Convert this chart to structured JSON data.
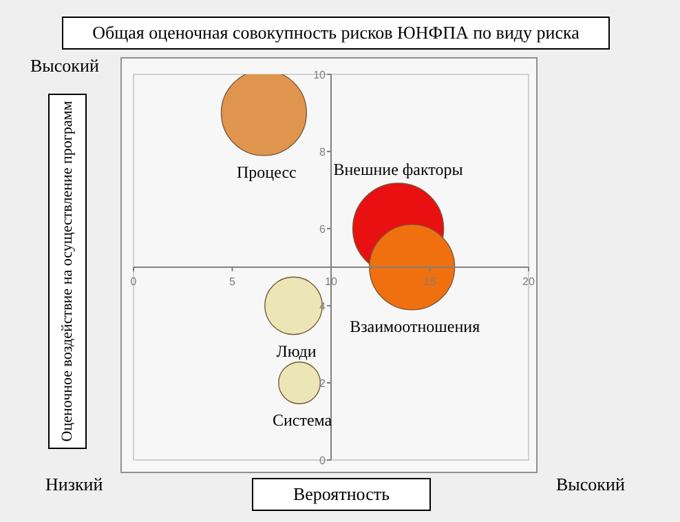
{
  "chart_data": {
    "type": "bubble",
    "title": "Общая оценочная совокупность рисков ЮНФПА по виду риска",
    "xlabel": "Вероятность",
    "ylabel": "Оценочное воздействие на осуществление программ",
    "annotations": [
      "Высокий",
      "Низкий",
      "Высокий"
    ],
    "xlim": [
      0,
      20
    ],
    "xticks": [
      0,
      5,
      10,
      15,
      20
    ],
    "ylim": [
      0,
      10
    ],
    "yticks": [
      0,
      2,
      4,
      6,
      8,
      10
    ],
    "series": [
      {
        "name": "Процесс",
        "color": "#e0954f",
        "x": [
          6.6
        ],
        "values": [
          9
        ],
        "sizes": [
          0.88
        ]
      },
      {
        "name": "Внешние факторы",
        "color": "#e81010",
        "x": [
          13.4
        ],
        "values": [
          6
        ],
        "sizes": [
          1
        ]
      },
      {
        "name": "Взаимоотношения",
        "color": "#f07010",
        "x": [
          14.1
        ],
        "values": [
          5
        ],
        "sizes": [
          0.88
        ]
      },
      {
        "name": "Люди",
        "color": "#ece5b5",
        "x": [
          8.1
        ],
        "values": [
          4
        ],
        "sizes": [
          0.4
        ]
      },
      {
        "name": "Система",
        "color": "#ece5b5",
        "x": [
          8.4
        ],
        "values": [
          2
        ],
        "sizes": [
          0.21
        ]
      }
    ]
  }
}
